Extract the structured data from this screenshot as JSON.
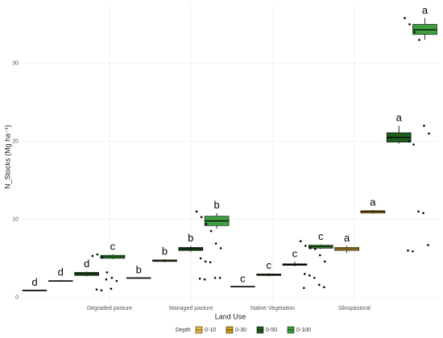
{
  "chart_data": {
    "type": "box",
    "x_label": "Land Use",
    "y_label": "N_Stocks (Mg ha⁻¹)",
    "categories": [
      "Degraded pasture",
      "Managed pasture",
      "Native Vegetation",
      "Silvopastoral"
    ],
    "ylim": [
      -1.6,
      37.6
    ],
    "yticks": [
      0,
      10,
      20,
      30
    ],
    "grid": true,
    "legend_title": "Depth",
    "legend_position": "bottom",
    "series": [
      {
        "name": "0-10",
        "color": "#f0c040",
        "stats": [
          [
            0.9,
            0.9,
            0.9,
            0.9,
            0.9
          ],
          [
            2.5,
            2.5,
            2.5,
            2.5,
            2.5
          ],
          [
            1.4,
            1.4,
            1.4,
            1.4,
            1.4
          ],
          [
            5.7,
            6.0,
            6.2,
            6.4,
            6.6
          ]
        ],
        "letters": [
          "d",
          "b",
          "c",
          "a"
        ]
      },
      {
        "name": "0-30",
        "color": "#d4a017",
        "stats": [
          [
            2.0,
            2.05,
            2.1,
            2.15,
            2.2
          ],
          [
            4.5,
            4.6,
            4.7,
            4.8,
            4.9
          ],
          [
            2.7,
            2.8,
            2.9,
            3.0,
            3.1
          ],
          [
            10.7,
            10.8,
            11.0,
            11.1,
            11.2
          ]
        ],
        "letters": [
          "d",
          "b",
          "c",
          "a"
        ]
      },
      {
        "name": "0-50",
        "color": "#1e5e1e",
        "stats": [
          [
            2.7,
            2.8,
            3.0,
            3.2,
            3.3
          ],
          [
            5.8,
            6.0,
            6.2,
            6.4,
            6.6
          ],
          [
            4.0,
            4.1,
            4.2,
            4.3,
            4.6
          ],
          [
            19.7,
            19.9,
            20.5,
            21.1,
            22.0
          ]
        ],
        "letters": [
          "d",
          "b",
          "c",
          "a"
        ]
      },
      {
        "name": "0-100",
        "color": "#3fa03f",
        "stats": [
          [
            4.9,
            5.0,
            5.2,
            5.4,
            5.5
          ],
          [
            8.8,
            9.2,
            9.8,
            10.4,
            10.8
          ],
          [
            6.2,
            6.3,
            6.5,
            6.7,
            6.8
          ],
          [
            33.0,
            33.7,
            34.3,
            35.0,
            35.8
          ]
        ],
        "letters": [
          "c",
          "b",
          "c",
          "a"
        ]
      }
    ],
    "points": [
      [
        5.3,
        5.5,
        5.1,
        3.2,
        2.5,
        2.1,
        1.0,
        0.9,
        2.3,
        1.1
      ],
      [
        11.0,
        10.3,
        9.4,
        8.5,
        6.9,
        6.3,
        5.0,
        4.6,
        4.5,
        2.5,
        2.5,
        2.4,
        2.3
      ],
      [
        7.2,
        6.6,
        6.3,
        6.2,
        5.4,
        4.6,
        3.0,
        2.8,
        2.5,
        1.6,
        1.3,
        1.2
      ],
      [
        35.8,
        35.0,
        34.0,
        33.0,
        22.0,
        21.0,
        20.0,
        19.6,
        11.0,
        10.8,
        6.7,
        6.0,
        5.9
      ]
    ]
  }
}
